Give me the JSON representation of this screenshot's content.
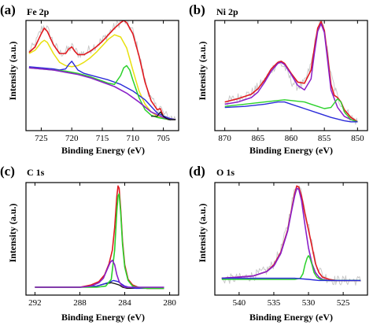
{
  "chart_data": [
    {
      "type": "line",
      "panel_label": "(a)",
      "title": "Fe 2p",
      "xlabel": "Binding Energy (eV)",
      "ylabel": "Intensity (a.u.)",
      "xlim": [
        727.5,
        702.5
      ],
      "ylim": [
        0,
        1
      ],
      "x_reversed": true,
      "x_ticks": [
        725,
        720,
        715,
        710,
        705
      ],
      "y_tick_labels": false,
      "series": [
        {
          "color": "#c9c9c9",
          "width": 1.0,
          "noisy": true,
          "x": [
            727,
            726,
            725,
            724.5,
            724,
            723,
            722,
            721,
            720,
            719,
            718,
            717,
            716,
            715,
            714,
            713,
            712,
            711.5,
            711,
            710,
            709,
            708,
            707,
            706,
            705.5,
            705,
            704,
            703
          ],
          "y": [
            0.72,
            0.78,
            0.92,
            0.95,
            0.92,
            0.8,
            0.7,
            0.72,
            0.76,
            0.7,
            0.7,
            0.74,
            0.78,
            0.82,
            0.88,
            0.94,
            0.99,
            1.0,
            0.98,
            0.9,
            0.7,
            0.45,
            0.28,
            0.2,
            0.22,
            0.15,
            0.12,
            0.11
          ]
        },
        {
          "color": "#e0191f",
          "width": 1.6,
          "x": [
            727,
            726,
            725,
            724.5,
            724,
            723,
            722,
            721,
            720.5,
            720,
            719.5,
            719,
            718,
            717,
            716,
            715,
            714,
            713,
            712,
            711.5,
            711,
            710,
            709,
            708,
            707,
            706,
            705.5,
            705,
            704,
            703
          ],
          "y": [
            0.71,
            0.76,
            0.88,
            0.93,
            0.9,
            0.78,
            0.7,
            0.7,
            0.74,
            0.76,
            0.72,
            0.69,
            0.69,
            0.72,
            0.76,
            0.81,
            0.87,
            0.93,
            0.98,
            1.0,
            0.98,
            0.88,
            0.68,
            0.44,
            0.27,
            0.19,
            0.2,
            0.13,
            0.11,
            0.1
          ]
        },
        {
          "color": "#e8e010",
          "width": 1.5,
          "x": [
            727,
            726,
            725,
            724.5,
            724,
            723,
            722,
            721,
            720,
            719,
            718,
            717,
            716,
            715,
            714,
            713,
            712,
            711,
            710,
            709,
            708,
            707,
            706,
            705,
            704,
            703
          ],
          "y": [
            0.7,
            0.73,
            0.8,
            0.82,
            0.8,
            0.7,
            0.62,
            0.59,
            0.58,
            0.59,
            0.62,
            0.66,
            0.71,
            0.77,
            0.83,
            0.87,
            0.85,
            0.75,
            0.55,
            0.36,
            0.24,
            0.17,
            0.13,
            0.11,
            0.1,
            0.1
          ]
        },
        {
          "color": "#2a2ad9",
          "width": 1.4,
          "x": [
            727,
            725,
            723,
            722,
            721,
            720.5,
            720,
            719.5,
            719,
            718,
            716,
            714,
            712,
            710,
            708,
            706,
            704,
            703
          ],
          "y": [
            0.58,
            0.57,
            0.56,
            0.55,
            0.56,
            0.6,
            0.63,
            0.59,
            0.55,
            0.52,
            0.49,
            0.46,
            0.42,
            0.36,
            0.28,
            0.16,
            0.11,
            0.1
          ]
        },
        {
          "color": "#2bd12b",
          "width": 1.5,
          "x": [
            727,
            725,
            723,
            721,
            719,
            717,
            715,
            714,
            713,
            712,
            711.5,
            711,
            710.5,
            710,
            709,
            708,
            707,
            706,
            705,
            704,
            703
          ],
          "y": [
            0.57,
            0.56,
            0.55,
            0.54,
            0.52,
            0.49,
            0.45,
            0.43,
            0.42,
            0.5,
            0.57,
            0.59,
            0.55,
            0.46,
            0.3,
            0.19,
            0.14,
            0.12,
            0.11,
            0.1,
            0.1
          ]
        },
        {
          "color": "#8a20c8",
          "width": 1.6,
          "x": [
            727,
            725,
            723,
            721,
            719,
            717,
            715,
            713,
            711,
            709,
            707,
            705,
            704,
            703
          ],
          "y": [
            0.57,
            0.56,
            0.55,
            0.53,
            0.51,
            0.48,
            0.44,
            0.4,
            0.34,
            0.26,
            0.17,
            0.12,
            0.1,
            0.1
          ]
        },
        {
          "color": "#111111",
          "width": 1.2,
          "x": [
            707,
            706,
            705.5,
            705,
            704.5,
            704,
            703
          ],
          "y": [
            0.13,
            0.13,
            0.17,
            0.13,
            0.11,
            0.1,
            0.1
          ]
        }
      ]
    },
    {
      "type": "line",
      "panel_label": "(b)",
      "title": "Ni 2p",
      "xlabel": "Binding Energy (eV)",
      "ylabel": "Intensity (a.u.)",
      "xlim": [
        871.5,
        848.5
      ],
      "ylim": [
        0,
        1
      ],
      "x_reversed": true,
      "x_ticks": [
        870,
        865,
        860,
        855,
        850
      ],
      "y_tick_labels": false,
      "series": [
        {
          "color": "#c9c9c9",
          "width": 1.0,
          "noisy": true,
          "x": [
            870,
            868,
            866,
            864,
            863,
            862,
            861,
            860,
            859,
            858,
            857,
            856,
            855.5,
            855,
            854,
            853,
            852.5,
            852,
            851,
            850
          ],
          "y": [
            0.26,
            0.3,
            0.34,
            0.45,
            0.55,
            0.62,
            0.58,
            0.45,
            0.4,
            0.43,
            0.6,
            0.92,
            1.0,
            0.9,
            0.5,
            0.3,
            0.25,
            0.2,
            0.12,
            0.08
          ]
        },
        {
          "color": "#e0191f",
          "width": 1.6,
          "x": [
            870,
            868,
            866,
            865,
            864,
            863,
            862,
            861.5,
            861,
            860,
            859,
            858,
            857,
            856.5,
            856,
            855.5,
            855,
            854.5,
            854,
            853.5,
            853,
            852.5,
            852,
            851,
            850
          ],
          "y": [
            0.26,
            0.29,
            0.33,
            0.38,
            0.46,
            0.56,
            0.62,
            0.63,
            0.61,
            0.52,
            0.44,
            0.43,
            0.55,
            0.75,
            0.93,
            0.99,
            0.91,
            0.67,
            0.42,
            0.32,
            0.3,
            0.26,
            0.19,
            0.12,
            0.08
          ]
        },
        {
          "color": "#8a20c8",
          "width": 1.5,
          "x": [
            870,
            868,
            866,
            865,
            864,
            863,
            862,
            861.5,
            861,
            860,
            859,
            858,
            857,
            856.5,
            856,
            855.5,
            855,
            854.5,
            854,
            853,
            852,
            851,
            850
          ],
          "y": [
            0.24,
            0.26,
            0.3,
            0.35,
            0.44,
            0.54,
            0.61,
            0.62,
            0.6,
            0.51,
            0.41,
            0.37,
            0.47,
            0.7,
            0.9,
            0.97,
            0.89,
            0.63,
            0.37,
            0.21,
            0.13,
            0.1,
            0.08
          ]
        },
        {
          "color": "#2bd12b",
          "width": 1.4,
          "x": [
            870,
            867,
            864,
            861,
            858,
            857,
            856,
            855,
            854,
            853.5,
            853,
            852.5,
            852,
            851,
            850
          ],
          "y": [
            0.22,
            0.24,
            0.26,
            0.28,
            0.26,
            0.24,
            0.22,
            0.2,
            0.21,
            0.25,
            0.29,
            0.26,
            0.17,
            0.1,
            0.08
          ]
        },
        {
          "color": "#2a2ad9",
          "width": 1.4,
          "x": [
            870,
            867,
            864,
            862,
            861,
            860,
            858,
            856,
            854,
            852,
            851,
            850
          ],
          "y": [
            0.21,
            0.22,
            0.24,
            0.26,
            0.26,
            0.24,
            0.2,
            0.16,
            0.12,
            0.09,
            0.08,
            0.08
          ]
        }
      ]
    },
    {
      "type": "line",
      "panel_label": "(c)",
      "title": "C 1s",
      "xlabel": "Binding Energy (eV)",
      "ylabel": "Intensity (a.u.)",
      "xlim": [
        292.8,
        279.2
      ],
      "ylim": [
        0,
        1
      ],
      "x_reversed": true,
      "x_ticks": [
        292,
        288,
        284,
        280
      ],
      "y_tick_labels": false,
      "series": [
        {
          "color": "#111111",
          "width": 1.3,
          "x": [
            292,
            290,
            288,
            286.5,
            285.8,
            285.2,
            284.8,
            284.5,
            284.2,
            283.8,
            283.2,
            282,
            280.5
          ],
          "y": [
            0.07,
            0.07,
            0.07,
            0.08,
            0.1,
            0.11,
            0.1,
            0.09,
            0.07,
            0.06,
            0.06,
            0.06,
            0.06
          ]
        },
        {
          "color": "#2a2ad9",
          "width": 1.4,
          "x": [
            292,
            290,
            288,
            286.5,
            285.5,
            285,
            284.6,
            284.3,
            284,
            283.6,
            283,
            282,
            280.5
          ],
          "y": [
            0.07,
            0.07,
            0.07,
            0.08,
            0.11,
            0.13,
            0.12,
            0.1,
            0.08,
            0.07,
            0.06,
            0.06,
            0.06
          ]
        },
        {
          "color": "#e0191f",
          "width": 1.6,
          "x": [
            292,
            290,
            288,
            287,
            286.3,
            285.8,
            285.4,
            285.1,
            284.9,
            284.7,
            284.6,
            284.5,
            284.35,
            284.2,
            284,
            283.7,
            283.3,
            282.8,
            282,
            281,
            280.5
          ],
          "y": [
            0.07,
            0.07,
            0.07,
            0.09,
            0.12,
            0.18,
            0.28,
            0.4,
            0.6,
            0.88,
            0.97,
            0.95,
            0.75,
            0.48,
            0.27,
            0.14,
            0.09,
            0.07,
            0.06,
            0.06,
            0.06
          ]
        },
        {
          "color": "#2bd12b",
          "width": 1.6,
          "x": [
            292,
            290,
            288,
            286.5,
            285.7,
            285.2,
            284.9,
            284.7,
            284.6,
            284.5,
            284.35,
            284.2,
            284,
            283.7,
            283.3,
            282.8,
            282,
            281,
            280.5
          ],
          "y": [
            0.07,
            0.07,
            0.07,
            0.07,
            0.08,
            0.14,
            0.4,
            0.75,
            0.88,
            0.9,
            0.72,
            0.45,
            0.25,
            0.13,
            0.08,
            0.07,
            0.06,
            0.06,
            0.06
          ]
        },
        {
          "color": "#8a20c8",
          "width": 1.6,
          "x": [
            292,
            290,
            288,
            287,
            286.3,
            285.9,
            285.6,
            285.3,
            285.1,
            284.9,
            284.7,
            284.5,
            284.3,
            284,
            283.5,
            283,
            282,
            281,
            280.5
          ],
          "y": [
            0.07,
            0.07,
            0.07,
            0.08,
            0.11,
            0.15,
            0.22,
            0.29,
            0.31,
            0.27,
            0.18,
            0.12,
            0.09,
            0.07,
            0.07,
            0.07,
            0.07,
            0.07,
            0.07
          ]
        }
      ]
    },
    {
      "type": "line",
      "panel_label": "(d)",
      "title": "O 1s",
      "xlabel": "Binding Energy (eV)",
      "ylabel": "Intensity (a.u.)",
      "xlim": [
        543.5,
        521.5
      ],
      "ylim": [
        0,
        1
      ],
      "x_reversed": true,
      "x_ticks": [
        540,
        535,
        530,
        525
      ],
      "y_tick_labels": false,
      "series": [
        {
          "color": "#c9c9c9",
          "width": 1.0,
          "noisy": true,
          "x": [
            542.5,
            540,
            538,
            536,
            535,
            534,
            533,
            532.5,
            532,
            531.5,
            531,
            530.5,
            530,
            529.5,
            529,
            528,
            527,
            526,
            524,
            522.5
          ],
          "y": [
            0.14,
            0.15,
            0.17,
            0.22,
            0.28,
            0.4,
            0.62,
            0.8,
            0.92,
            0.98,
            0.92,
            0.78,
            0.62,
            0.45,
            0.3,
            0.18,
            0.14,
            0.13,
            0.13,
            0.13
          ]
        },
        {
          "color": "#e0191f",
          "width": 1.6,
          "x": [
            542.5,
            540,
            538,
            536,
            535,
            534,
            533,
            532.5,
            532,
            531.7,
            531.4,
            531,
            530.5,
            530,
            529.5,
            529,
            528.5,
            528,
            527,
            526,
            524,
            522.5
          ],
          "y": [
            0.15,
            0.16,
            0.17,
            0.21,
            0.27,
            0.38,
            0.58,
            0.74,
            0.9,
            0.97,
            0.96,
            0.88,
            0.72,
            0.58,
            0.43,
            0.28,
            0.2,
            0.16,
            0.14,
            0.13,
            0.13,
            0.13
          ]
        },
        {
          "color": "#8a20c8",
          "width": 1.6,
          "x": [
            542.5,
            540,
            538,
            536,
            535,
            534,
            533,
            532.5,
            532,
            531.7,
            531.4,
            531,
            530.5,
            530,
            529.5,
            529,
            528.5,
            528,
            527,
            526,
            524,
            522.5
          ],
          "y": [
            0.15,
            0.16,
            0.17,
            0.21,
            0.26,
            0.37,
            0.57,
            0.73,
            0.88,
            0.95,
            0.94,
            0.84,
            0.62,
            0.42,
            0.28,
            0.2,
            0.16,
            0.14,
            0.13,
            0.13,
            0.13,
            0.13
          ]
        },
        {
          "color": "#2bd12b",
          "width": 1.5,
          "x": [
            542.5,
            538,
            534,
            532,
            531.2,
            530.8,
            530.5,
            530.2,
            530,
            529.8,
            529.5,
            529.2,
            528.8,
            528.3,
            527.5,
            526,
            524,
            522.5
          ],
          "y": [
            0.14,
            0.14,
            0.14,
            0.14,
            0.15,
            0.19,
            0.27,
            0.33,
            0.35,
            0.33,
            0.27,
            0.2,
            0.16,
            0.14,
            0.13,
            0.13,
            0.13,
            0.13
          ]
        },
        {
          "color": "#2a2ad9",
          "width": 1.4,
          "x": [
            542.5,
            540,
            538,
            536,
            534,
            532,
            530,
            528.5,
            527,
            525,
            522.5
          ],
          "y": [
            0.15,
            0.15,
            0.15,
            0.15,
            0.15,
            0.15,
            0.14,
            0.13,
            0.13,
            0.13,
            0.13
          ]
        }
      ]
    }
  ]
}
